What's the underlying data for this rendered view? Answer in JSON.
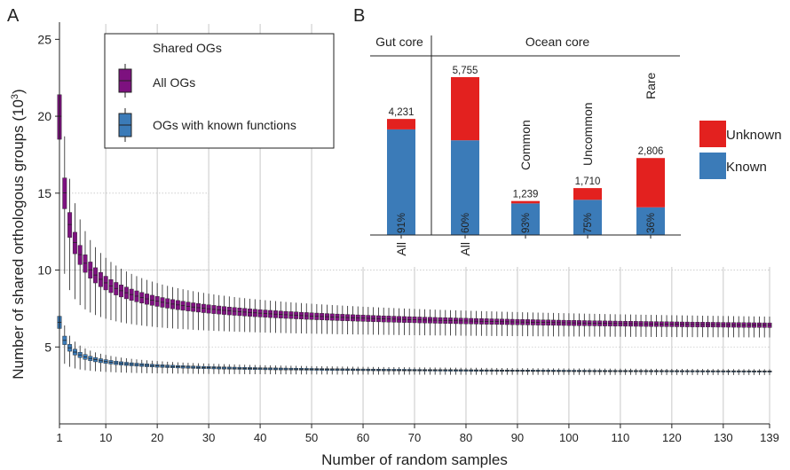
{
  "panel_labels": {
    "a": "A",
    "b": "B"
  },
  "colors": {
    "all_ogs": "#7d117f",
    "known_ogs": "#3b7bb8",
    "unknown": "#e3211f",
    "known": "#3b7bb8",
    "grid": "#c8c8c8",
    "text": "#222222"
  },
  "chart_data": [
    {
      "type": "box",
      "panel": "A",
      "xlabel": "Number of random samples",
      "ylabel_main": "Number of shared orthologous groups (10",
      "ylabel_sup": "3",
      "ylabel_end": ")",
      "xlim": [
        1,
        139
      ],
      "ylim": [
        0,
        26
      ],
      "xticks": [
        1,
        10,
        20,
        30,
        40,
        50,
        60,
        70,
        80,
        90,
        100,
        110,
        120,
        130,
        139
      ],
      "xtick_labels": [
        "1",
        "10",
        "20",
        "30",
        "40",
        "50",
        "60",
        "70",
        "80",
        "90",
        "100",
        "110",
        "120",
        "130",
        "139"
      ],
      "yticks": [
        5,
        10,
        15,
        20,
        25
      ],
      "ytick_labels": [
        "5",
        "10",
        "15",
        "20",
        "25"
      ],
      "legend": {
        "title": "Shared OGs",
        "entries": [
          "All OGs",
          "OGs with known functions"
        ]
      },
      "series": [
        {
          "name": "All OGs",
          "median": {
            "first": 20.0,
            "final": 5.75
          },
          "q1_first": 18.5,
          "q3_first": 21.4,
          "min_first": 12.4,
          "max_first": 25.3
        },
        {
          "name": "OGs with known functions",
          "median": {
            "first": 6.6,
            "final": 3.25
          },
          "q1_first": 6.2,
          "q3_first": 7.0,
          "min_first": 4.4,
          "max_first": 8.0
        }
      ]
    },
    {
      "type": "bar",
      "panel": "B",
      "group_labels": [
        "Gut core",
        "Ocean core"
      ],
      "categories": [
        "All",
        "All",
        "Common",
        "Uncommon",
        "Rare"
      ],
      "totals": [
        4231,
        5755,
        1239,
        1710,
        2806
      ],
      "total_labels": [
        "4,231",
        "5,755",
        "1,239",
        "1,710",
        "2,806"
      ],
      "known_pct_labels": [
        "91%",
        "60%",
        "93%",
        "75%",
        "36%"
      ],
      "series": [
        {
          "name": "Known",
          "values": [
            3850,
            3453,
            1152,
            1283,
            1010
          ]
        },
        {
          "name": "Unknown",
          "values": [
            381,
            2302,
            87,
            427,
            1796
          ]
        }
      ],
      "legend": [
        "Unknown",
        "Known"
      ]
    }
  ]
}
